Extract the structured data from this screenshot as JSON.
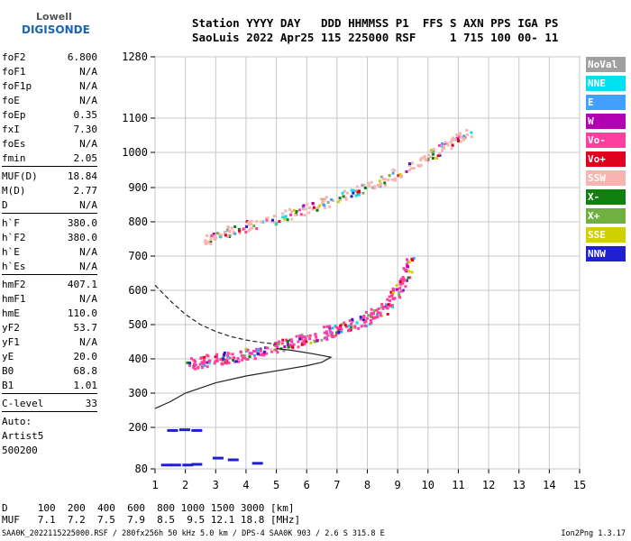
{
  "logo": {
    "line1": "Lowell",
    "line2": "DIGISONDE"
  },
  "header": {
    "row1": "Station YYYY DAY   DDD HHMMSS P1  FFS S AXN PPS IGA PS",
    "row2": "SaoLuis 2022 Apr25 115 225000 RSF     1 715 100 00- 11"
  },
  "params": {
    "group1": [
      {
        "name": "foF2",
        "value": "6.800"
      },
      {
        "name": "foF1",
        "value": "N/A"
      },
      {
        "name": "foF1p",
        "value": "N/A"
      },
      {
        "name": "foE",
        "value": "N/A"
      },
      {
        "name": "foEp",
        "value": "0.35"
      },
      {
        "name": "fxI",
        "value": "7.30"
      },
      {
        "name": "foEs",
        "value": "N/A"
      },
      {
        "name": "fmin",
        "value": "2.05"
      }
    ],
    "group2": [
      {
        "name": "MUF(D)",
        "value": "18.84"
      },
      {
        "name": "M(D)",
        "value": "2.77"
      },
      {
        "name": "D",
        "value": "N/A"
      }
    ],
    "group3": [
      {
        "name": "h`F",
        "value": "380.0"
      },
      {
        "name": "h`F2",
        "value": "380.0"
      },
      {
        "name": "h`E",
        "value": "N/A"
      },
      {
        "name": "h`Es",
        "value": "N/A"
      }
    ],
    "group4": [
      {
        "name": "hmF2",
        "value": "407.1"
      },
      {
        "name": "hmF1",
        "value": "N/A"
      },
      {
        "name": "hmE",
        "value": "110.0"
      },
      {
        "name": "yF2",
        "value": "53.7"
      },
      {
        "name": "yF1",
        "value": "N/A"
      },
      {
        "name": "yE",
        "value": "20.0"
      },
      {
        "name": "B0",
        "value": "68.8"
      },
      {
        "name": "B1",
        "value": "1.01"
      }
    ],
    "group5": [
      {
        "name": "C-level",
        "value": "33"
      }
    ],
    "auto": [
      "Auto:",
      "Artist5",
      "500200"
    ]
  },
  "legend": [
    {
      "label": "NoVal",
      "color": "#a0a0a0"
    },
    {
      "label": "NNE",
      "color": "#00e0f0"
    },
    {
      "label": "E",
      "color": "#40a0ff"
    },
    {
      "label": "W",
      "color": "#b000b0"
    },
    {
      "label": "Vo-",
      "color": "#ff3fa0"
    },
    {
      "label": "Vo+",
      "color": "#e00020"
    },
    {
      "label": "SSW",
      "color": "#f8b4b0"
    },
    {
      "label": "X-",
      "color": "#108010"
    },
    {
      "label": "X+",
      "color": "#70b040"
    },
    {
      "label": "SSE",
      "color": "#d0d000"
    },
    {
      "label": "NNW",
      "color": "#2020d0"
    }
  ],
  "mufTable": {
    "row1": "D     100  200  400  600  800 1000 1500 3000 [km]",
    "row2": "MUF   7.1  7.2  7.5  7.9  8.5  9.5 12.1 18.8 [MHz]"
  },
  "footer": "SAA0K_2022115225000.RSF / 280fx256h 50 kHz 5.0 km / DPS-4 SAA0K 903 / 2.6 S 315.8 E",
  "version": "Ion2Png 1.3.17",
  "chart_data": {
    "type": "scatter",
    "xlim": [
      1,
      15
    ],
    "ylim": [
      80,
      1280
    ],
    "x_ticks": [
      1,
      2,
      3,
      4,
      5,
      6,
      7,
      8,
      9,
      10,
      11,
      12,
      13,
      14,
      15
    ],
    "y_ticks": [
      80,
      200,
      300,
      400,
      500,
      600,
      700,
      800,
      900,
      1000,
      1100,
      1280
    ],
    "grid": true,
    "traces": [
      {
        "name": "F2 trace",
        "color": "#ff3fa0",
        "points": [
          [
            2.1,
            385
          ],
          [
            2.6,
            395
          ],
          [
            3.2,
            405
          ],
          [
            3.8,
            415
          ],
          [
            4.4,
            425
          ],
          [
            5.0,
            440
          ],
          [
            5.6,
            455
          ],
          [
            6.2,
            470
          ],
          [
            6.8,
            485
          ],
          [
            7.4,
            500
          ],
          [
            8.0,
            520
          ],
          [
            8.5,
            550
          ],
          [
            8.9,
            590
          ],
          [
            9.2,
            640
          ],
          [
            9.4,
            690
          ]
        ]
      },
      {
        "name": "F2 multi-hop",
        "color": "#f8b4b0",
        "points": [
          [
            2.6,
            750
          ],
          [
            3.2,
            770
          ],
          [
            4.0,
            790
          ],
          [
            5.0,
            815
          ],
          [
            6.0,
            840
          ],
          [
            7.0,
            870
          ],
          [
            8.0,
            905
          ],
          [
            9.0,
            945
          ],
          [
            10.0,
            990
          ],
          [
            10.7,
            1030
          ],
          [
            11.3,
            1060
          ]
        ]
      }
    ],
    "profile": [
      [
        1.0,
        255
      ],
      [
        1.5,
        275
      ],
      [
        2.0,
        300
      ],
      [
        3.0,
        330
      ],
      [
        4.0,
        350
      ],
      [
        5.0,
        365
      ],
      [
        6.0,
        380
      ],
      [
        6.5,
        390
      ],
      [
        6.8,
        405
      ],
      [
        6.2,
        415
      ],
      [
        5.5,
        425
      ],
      [
        5.0,
        430
      ]
    ],
    "profile_dashed": [
      [
        1.0,
        615
      ],
      [
        1.5,
        570
      ],
      [
        2.0,
        530
      ],
      [
        2.5,
        500
      ],
      [
        3.0,
        480
      ],
      [
        3.5,
        465
      ],
      [
        4.0,
        455
      ],
      [
        4.5,
        448
      ],
      [
        5.0,
        443
      ]
    ]
  }
}
